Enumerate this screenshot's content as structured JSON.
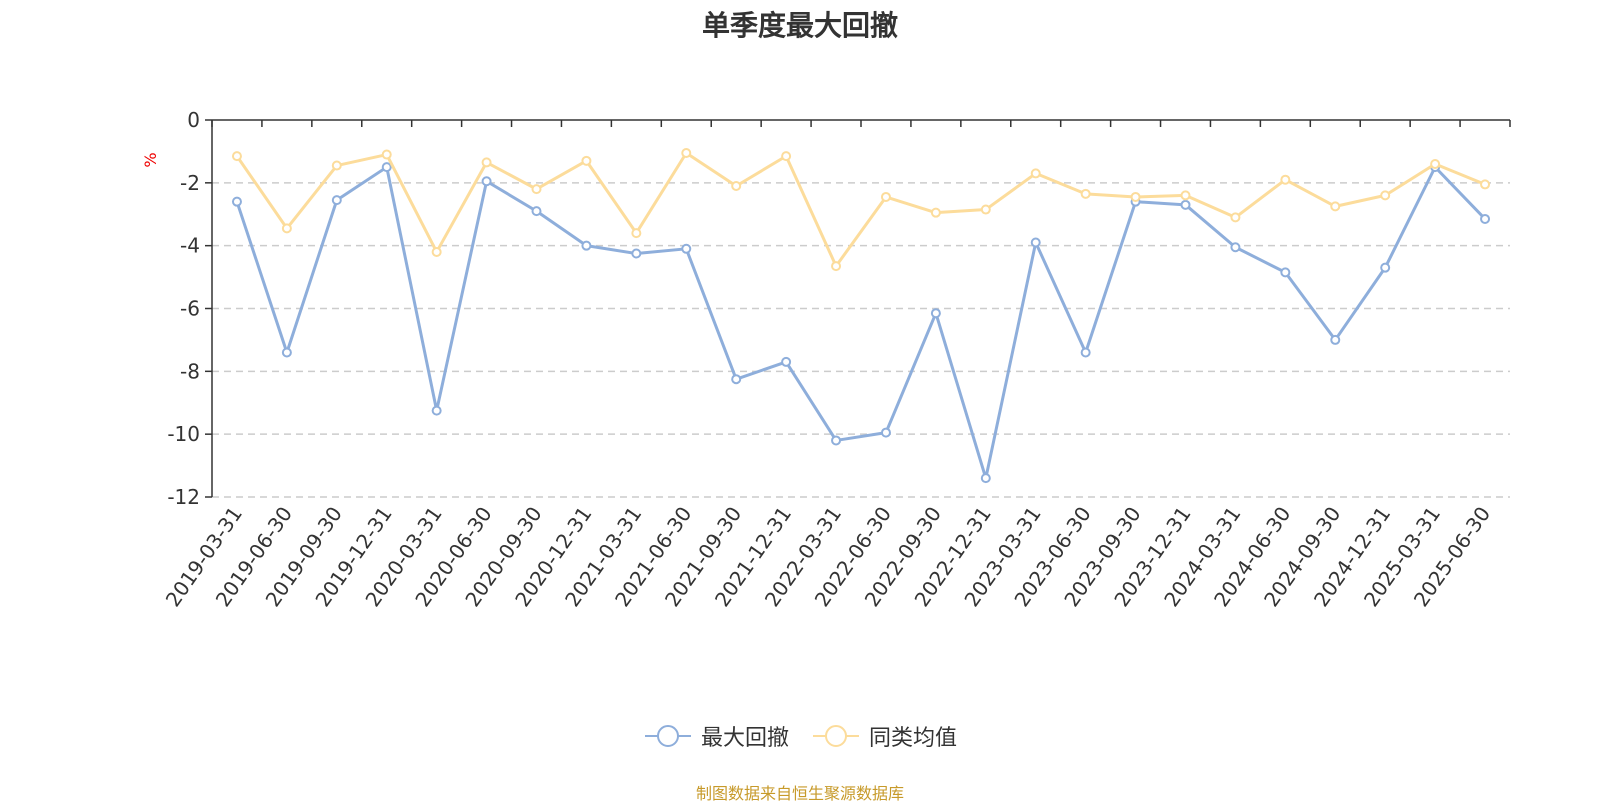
{
  "chart_data": {
    "type": "line",
    "title": "单季度最大回撤",
    "ylabel": "%",
    "ylim": [
      -12,
      0
    ],
    "yticks": [
      0,
      -2,
      -4,
      -6,
      -8,
      -10,
      -12
    ],
    "grid": true,
    "legend_position": "bottom",
    "categories": [
      "2019-03-31",
      "2019-06-30",
      "2019-09-30",
      "2019-12-31",
      "2020-03-31",
      "2020-06-30",
      "2020-09-30",
      "2020-12-31",
      "2021-03-31",
      "2021-06-30",
      "2021-09-30",
      "2021-12-31",
      "2022-03-31",
      "2022-06-30",
      "2022-09-30",
      "2022-12-31",
      "2023-03-31",
      "2023-06-30",
      "2023-09-30",
      "2023-12-31",
      "2024-03-31",
      "2024-06-30",
      "2024-09-30",
      "2024-12-31",
      "2025-03-31",
      "2025-06-30"
    ],
    "series": [
      {
        "name": "最大回撤",
        "color": "#8eaedb",
        "values": [
          -2.6,
          -7.4,
          -2.55,
          -1.5,
          -9.25,
          -1.95,
          -2.9,
          -4.0,
          -4.25,
          -4.1,
          -8.25,
          -7.7,
          -10.2,
          -9.95,
          -6.15,
          -11.4,
          -3.9,
          -7.4,
          -2.6,
          -2.7,
          -4.05,
          -4.85,
          -7.0,
          -4.7,
          -1.5,
          -3.15
        ]
      },
      {
        "name": "同类均值",
        "color": "#fcdc9b",
        "values": [
          -1.15,
          -3.45,
          -1.45,
          -1.1,
          -4.2,
          -1.35,
          -2.2,
          -1.3,
          -3.6,
          -1.05,
          -2.1,
          -1.15,
          -4.65,
          -2.45,
          -2.95,
          -2.85,
          -1.7,
          -2.35,
          -2.45,
          -2.4,
          -3.1,
          -1.9,
          -2.75,
          -2.4,
          -1.4,
          -2.05
        ]
      }
    ],
    "source_note": "制图数据来自恒生聚源数据库"
  },
  "colors": {
    "axis": "#333333",
    "grid": "#cccccc",
    "unit": "#ee0000",
    "source": "#c79a2a"
  }
}
